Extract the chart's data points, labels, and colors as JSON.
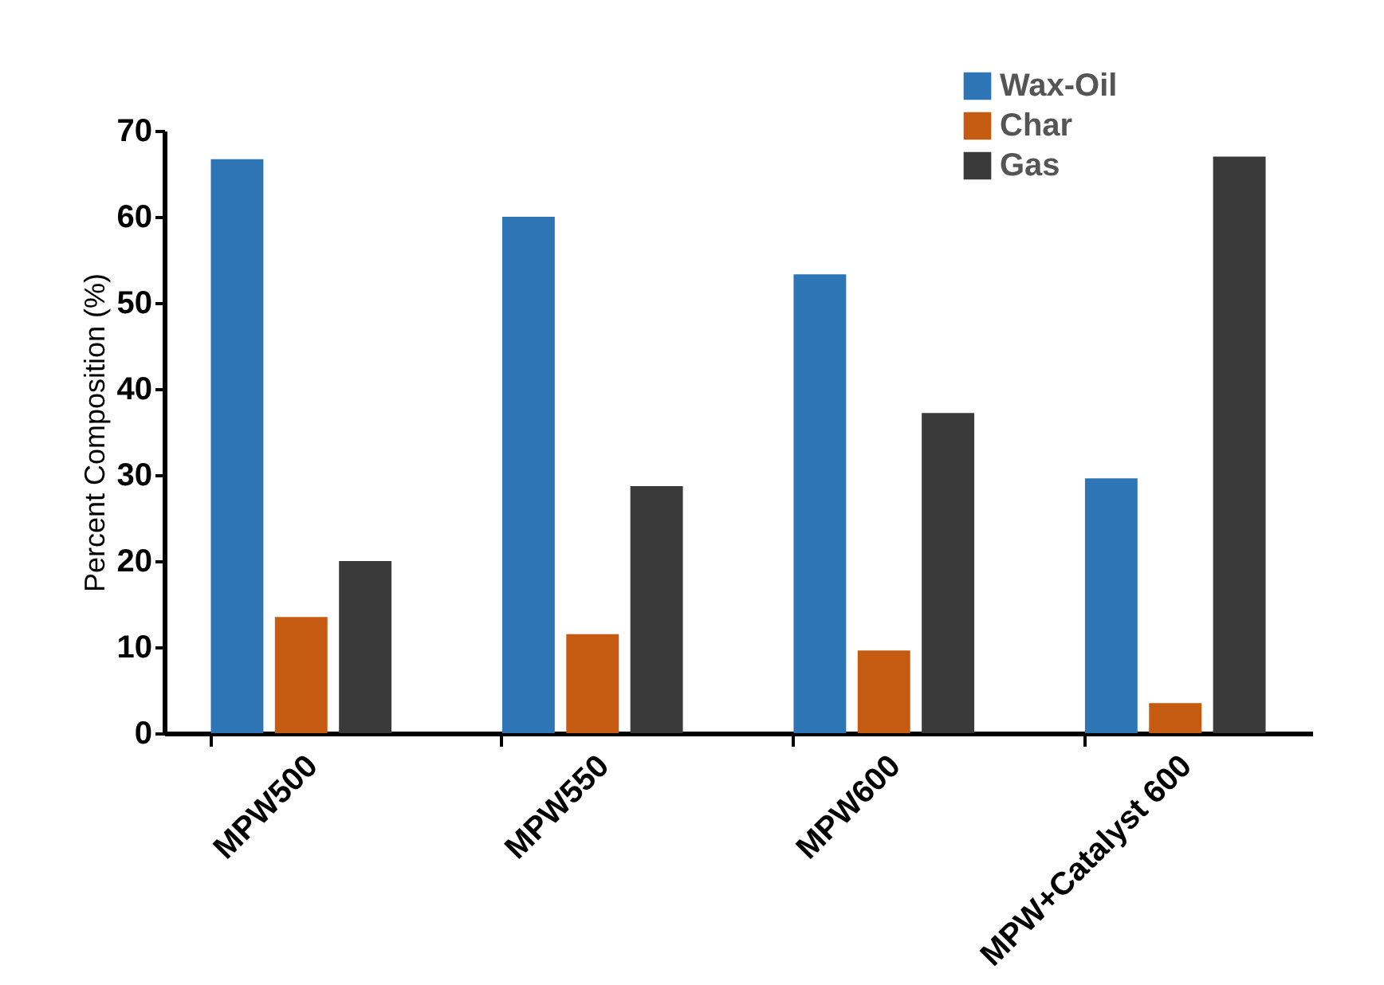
{
  "chart_data": {
    "type": "bar",
    "ylabel": "Percent Composition (%)",
    "categories": [
      "MPW500",
      "MPW550",
      "MPW600",
      "MPW+Catalyst 600"
    ],
    "series": [
      {
        "name": "Wax-Oil",
        "color": "#2e75b6",
        "values": [
          66.7,
          60.0,
          53.3,
          29.6
        ]
      },
      {
        "name": "Char",
        "color": "#c55a11",
        "values": [
          13.5,
          11.5,
          9.6,
          3.5
        ]
      },
      {
        "name": "Gas",
        "color": "#3a3a3a",
        "values": [
          20.0,
          28.7,
          37.2,
          67.0
        ]
      }
    ],
    "ylim": [
      0,
      70
    ],
    "yticks": [
      0,
      10,
      20,
      30,
      40,
      50,
      60,
      70
    ],
    "grid": false,
    "legend": "top right"
  }
}
